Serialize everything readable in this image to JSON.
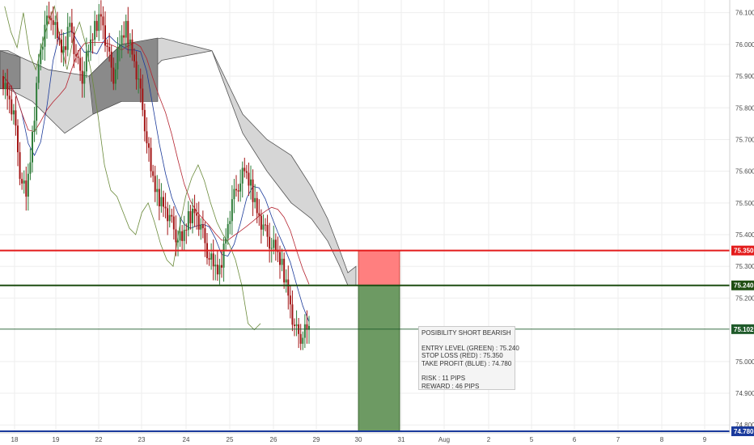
{
  "chart_data": {
    "type": "candlestick",
    "x_ticks": [
      "18",
      "19",
      "22",
      "23",
      "24",
      "25",
      "26",
      "29",
      "30",
      "31",
      "Aug",
      "2",
      "5",
      "6",
      "7",
      "8",
      "9"
    ],
    "y_ticks": [
      "76.100",
      "76.000",
      "75.900",
      "75.800",
      "75.700",
      "75.600",
      "75.500",
      "75.400",
      "75.300",
      "75.200",
      "75.000",
      "74.900",
      "74.800"
    ],
    "ylim": [
      74.775,
      76.14
    ],
    "levels": [
      {
        "name": "stop-loss",
        "value": 75.35,
        "label": "75.350",
        "color": "#e31b1b"
      },
      {
        "name": "entry",
        "value": 75.24,
        "label": "75.240",
        "color": "#1e4d12"
      },
      {
        "name": "last-price",
        "value": 75.102,
        "label": "75.102",
        "color": "#1f5a2a"
      },
      {
        "name": "take-profit",
        "value": 74.78,
        "label": "74.780",
        "color": "#1a3a9c"
      }
    ],
    "risk_box": {
      "from": 75.35,
      "to": 75.24,
      "color": "#ff7f7f"
    },
    "reward_box": {
      "from": 75.24,
      "to": 74.78,
      "color": "#6d9a63"
    },
    "price_path": [
      75.9,
      75.85,
      75.78,
      75.6,
      75.52,
      75.7,
      75.95,
      76.05,
      76.1,
      76.02,
      75.97,
      76.08,
      75.95,
      75.9,
      75.98,
      76.05,
      76.1,
      75.98,
      75.9,
      76.0,
      76.05,
      75.98,
      75.88,
      75.75,
      75.6,
      75.52,
      75.5,
      75.45,
      75.4,
      75.38,
      75.45,
      75.48,
      75.42,
      75.35,
      75.3,
      75.28,
      75.4,
      75.5,
      75.56,
      75.6,
      75.55,
      75.48,
      75.42,
      75.38,
      75.35,
      75.3,
      75.22,
      75.1,
      75.08,
      75.1
    ]
  },
  "note": {
    "title": "POSIBILITY SHORT BEARISH",
    "entry": "ENTRY LEVEL (GREEN) : 75.240",
    "stop": "STOP LOSS (RED) : 75.350",
    "take": "TAKE PROFIT (BLUE) : 74.780",
    "risk": "RISK : 11 PIPS",
    "reward": "REWARD : 46 PIPS"
  }
}
